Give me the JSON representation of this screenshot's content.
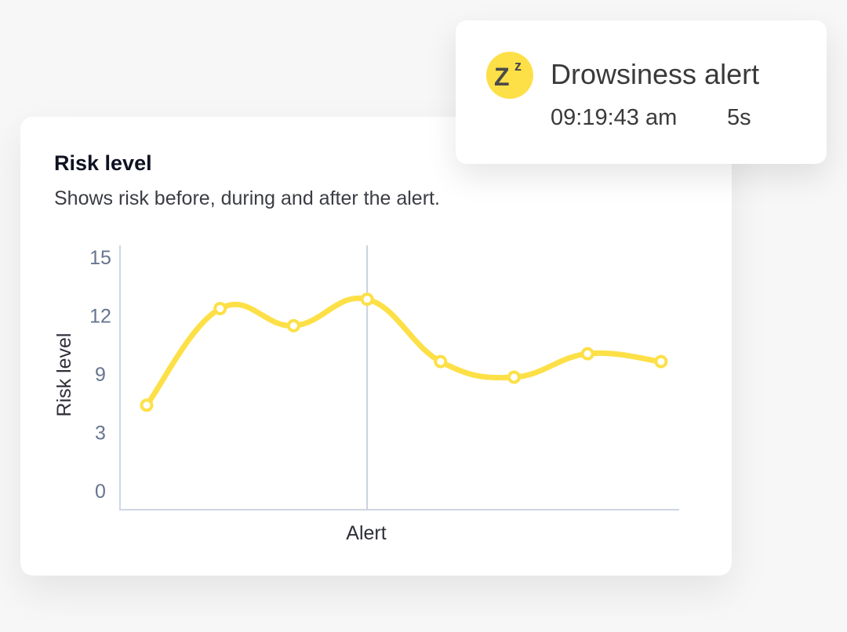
{
  "card": {
    "title": "Risk level",
    "subtitle": "Shows risk before, during and after the alert."
  },
  "alert": {
    "icon": "sleep-zz-icon",
    "icon_text_big": "Z",
    "icon_text_small": "z",
    "title": "Drowsiness alert",
    "time": "09:19:43 am",
    "duration": "5s",
    "icon_color": "#fde047"
  },
  "colors": {
    "line": "#fde047",
    "axis": "#cfd6e2",
    "tick_text": "#66758f"
  },
  "chart_data": {
    "type": "line",
    "title": "Risk level",
    "subtitle": "Shows risk before, during and after the alert.",
    "xlabel": "",
    "ylabel": "Risk level",
    "y_tick_labels": [
      "15",
      "12",
      "9",
      "3",
      "0"
    ],
    "ylim": [
      0,
      15
    ],
    "grid": false,
    "annotations": [
      {
        "type": "vertical-line",
        "x_index": 3,
        "label": "Alert"
      }
    ],
    "x": [
      1,
      2,
      3,
      4,
      5,
      6,
      7,
      8
    ],
    "series": [
      {
        "name": "Risk level",
        "values": [
          5.5,
          11.7,
          10.6,
          12.3,
          8.3,
          7.3,
          8.8,
          8.3
        ]
      }
    ],
    "x_tick_labels": [
      "Alert"
    ]
  }
}
